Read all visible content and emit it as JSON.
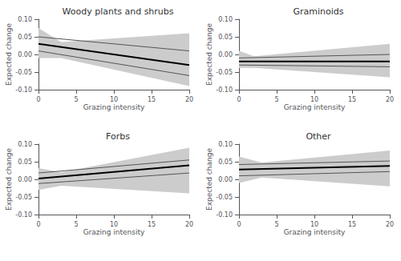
{
  "chart_data": [
    {
      "type": "line",
      "title": "Woody plants and shrubs",
      "xlabel": "Grazing intensity",
      "ylabel": "Expected change",
      "xlim": [
        0,
        20
      ],
      "xticks": [
        0,
        5,
        10,
        15,
        20
      ],
      "ylim": [
        -0.1,
        0.1
      ],
      "yticks": [
        {
          "value": -0.1,
          "label": "-0.10"
        },
        {
          "value": -0.05,
          "label": "-0.05"
        },
        {
          "value": 0.0,
          "label": "0.00"
        },
        {
          "value": 0.05,
          "label": "0.05"
        },
        {
          "value": 0.1,
          "label": "0.10"
        }
      ],
      "grid": false,
      "series": [
        {
          "type": "band",
          "color": "#cccccc",
          "x": [
            0,
            3,
            20
          ],
          "lower": [
            -0.01,
            -0.01,
            -0.09
          ],
          "upper": [
            0.075,
            0.035,
            0.06
          ]
        },
        {
          "type": "line",
          "color": "#555555",
          "x": [
            0,
            20
          ],
          "values": [
            0.05,
            0.01
          ]
        },
        {
          "type": "line",
          "color": "#555555",
          "x": [
            0,
            20
          ],
          "values": [
            0.01,
            -0.06
          ]
        },
        {
          "type": "line",
          "color": "black",
          "x": [
            0,
            20
          ],
          "values": [
            0.03,
            -0.03
          ]
        }
      ]
    },
    {
      "type": "line",
      "title": "Graminoids",
      "xlabel": "Grazing intensity",
      "ylabel": "Expected change",
      "xlim": [
        0,
        20
      ],
      "xticks": [
        0,
        5,
        10,
        15,
        20
      ],
      "ylim": [
        -0.1,
        0.1
      ],
      "yticks": [
        {
          "value": -0.1,
          "label": "-0.10"
        },
        {
          "value": -0.05,
          "label": "-0.05"
        },
        {
          "value": 0.0,
          "label": "0.00"
        },
        {
          "value": 0.05,
          "label": "0.05"
        },
        {
          "value": 0.1,
          "label": "0.10"
        }
      ],
      "grid": false,
      "series": [
        {
          "type": "band",
          "color": "#cccccc",
          "x": [
            0,
            2,
            20
          ],
          "lower": [
            -0.038,
            -0.038,
            -0.065
          ],
          "upper": [
            0.01,
            -0.005,
            0.03
          ]
        },
        {
          "type": "line",
          "color": "#555555",
          "x": [
            0,
            20
          ],
          "values": [
            -0.01,
            0.0
          ]
        },
        {
          "type": "line",
          "color": "#555555",
          "x": [
            0,
            20
          ],
          "values": [
            -0.03,
            -0.035
          ]
        },
        {
          "type": "line",
          "color": "black",
          "x": [
            0,
            20
          ],
          "values": [
            -0.02,
            -0.02
          ]
        }
      ]
    },
    {
      "type": "line",
      "title": "Forbs",
      "xlabel": "Grazing intensity",
      "ylabel": "Expected change",
      "xlim": [
        0,
        20
      ],
      "xticks": [
        0,
        5,
        10,
        15,
        20
      ],
      "ylim": [
        -0.1,
        0.1
      ],
      "yticks": [
        {
          "value": -0.1,
          "label": "-0.10"
        },
        {
          "value": -0.05,
          "label": "-0.05"
        },
        {
          "value": 0.0,
          "label": "0.00"
        },
        {
          "value": 0.05,
          "label": "0.05"
        },
        {
          "value": 0.1,
          "label": "0.10"
        }
      ],
      "grid": false,
      "series": [
        {
          "type": "band",
          "color": "#cccccc",
          "x": [
            0,
            3,
            20
          ],
          "lower": [
            -0.03,
            -0.018,
            -0.04
          ],
          "upper": [
            0.032,
            0.02,
            0.09
          ]
        },
        {
          "type": "line",
          "color": "#555555",
          "x": [
            0,
            20
          ],
          "values": [
            0.018,
            0.055
          ]
        },
        {
          "type": "line",
          "color": "#555555",
          "x": [
            0,
            20
          ],
          "values": [
            -0.012,
            0.018
          ]
        },
        {
          "type": "line",
          "color": "black",
          "x": [
            0,
            20
          ],
          "values": [
            0.002,
            0.04
          ]
        }
      ]
    },
    {
      "type": "line",
      "title": "Other",
      "xlabel": "Grazing intensity",
      "ylabel": "Expected change",
      "xlim": [
        0,
        20
      ],
      "xticks": [
        0,
        5,
        10,
        15,
        20
      ],
      "ylim": [
        -0.1,
        0.1
      ],
      "yticks": [
        {
          "value": -0.1,
          "label": "-0.10"
        },
        {
          "value": -0.05,
          "label": "-0.05"
        },
        {
          "value": 0.0,
          "label": "0.00"
        },
        {
          "value": 0.05,
          "label": "0.05"
        },
        {
          "value": 0.1,
          "label": "0.10"
        }
      ],
      "grid": false,
      "series": [
        {
          "type": "band",
          "color": "#cccccc",
          "x": [
            0,
            3,
            20
          ],
          "lower": [
            -0.01,
            0.005,
            -0.02
          ],
          "upper": [
            0.065,
            0.048,
            0.082
          ]
        },
        {
          "type": "line",
          "color": "#555555",
          "x": [
            0,
            20
          ],
          "values": [
            0.042,
            0.052
          ]
        },
        {
          "type": "line",
          "color": "#555555",
          "x": [
            0,
            20
          ],
          "values": [
            0.01,
            0.022
          ]
        },
        {
          "type": "line",
          "color": "black",
          "x": [
            0,
            20
          ],
          "values": [
            0.028,
            0.038
          ]
        }
      ]
    }
  ]
}
